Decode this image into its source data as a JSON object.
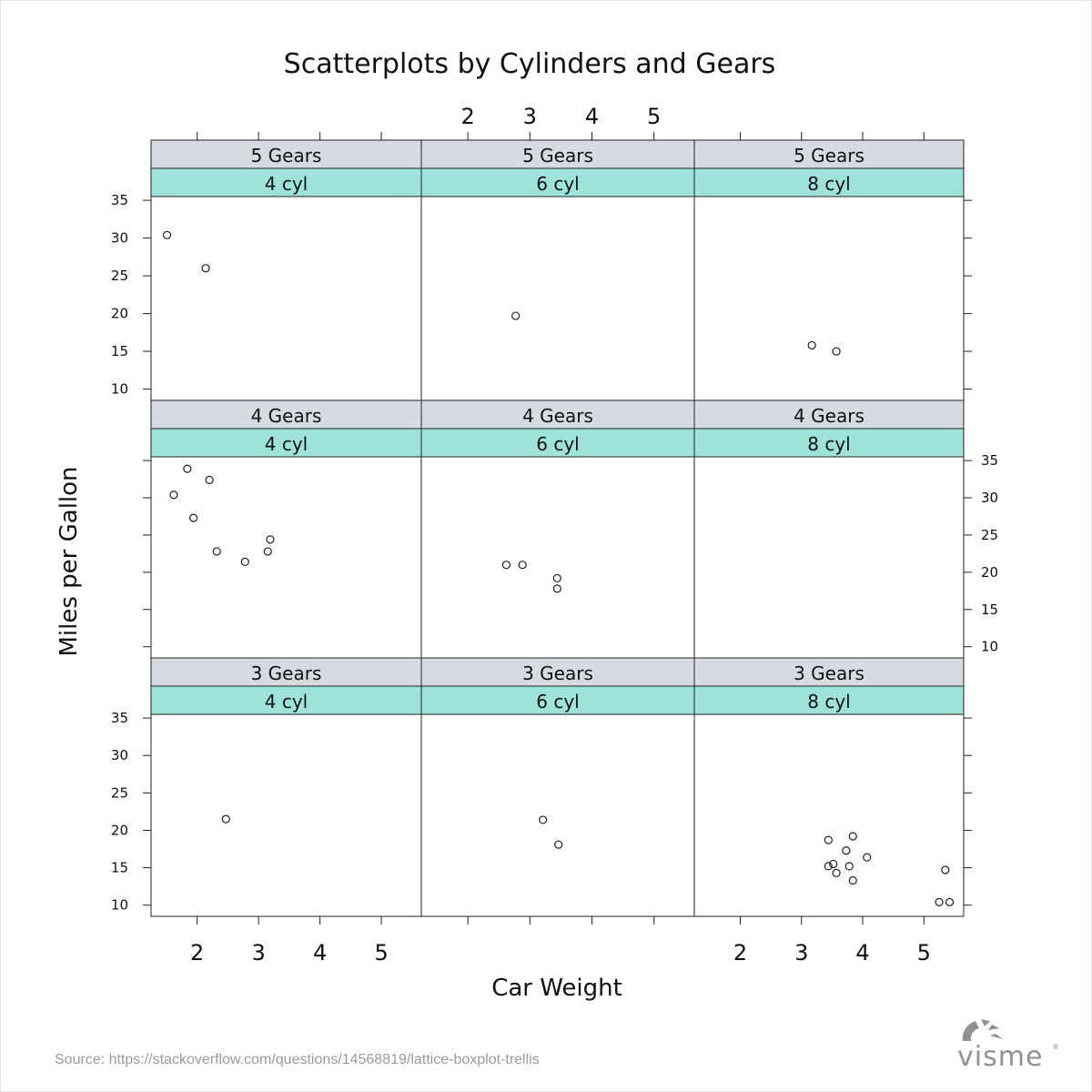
{
  "chart_data": {
    "type": "scatter",
    "title": "Scatterplots by Cylinders and Gears",
    "xlabel": "Car Weight",
    "ylabel": "Miles per Gallon",
    "xlim": [
      1.25,
      5.65
    ],
    "ylim": [
      8.5,
      35.5
    ],
    "x_ticks": [
      2,
      3,
      4,
      5
    ],
    "y_ticks": [
      10,
      15,
      20,
      25,
      30,
      35
    ],
    "strip_colors": {
      "gears": "#d7dae1",
      "cyl": "#9de3da"
    },
    "rows": [
      "5 Gears",
      "4 Gears",
      "3 Gears"
    ],
    "cols": [
      "4 cyl",
      "6 cyl",
      "8 cyl"
    ],
    "panels": [
      {
        "gears": "5 Gears",
        "cyl": "4 cyl",
        "points": [
          [
            1.51,
            30.4
          ],
          [
            2.14,
            26.0
          ]
        ]
      },
      {
        "gears": "5 Gears",
        "cyl": "6 cyl",
        "points": [
          [
            2.77,
            19.7
          ]
        ]
      },
      {
        "gears": "5 Gears",
        "cyl": "8 cyl",
        "points": [
          [
            3.17,
            15.8
          ],
          [
            3.57,
            15.0
          ]
        ]
      },
      {
        "gears": "4 Gears",
        "cyl": "4 cyl",
        "points": [
          [
            1.84,
            33.9
          ],
          [
            1.62,
            30.4
          ],
          [
            2.2,
            32.4
          ],
          [
            1.94,
            27.3
          ],
          [
            2.32,
            22.8
          ],
          [
            2.78,
            21.4
          ],
          [
            3.15,
            22.8
          ],
          [
            3.19,
            24.4
          ]
        ]
      },
      {
        "gears": "4 Gears",
        "cyl": "6 cyl",
        "points": [
          [
            2.62,
            21.0
          ],
          [
            2.88,
            21.0
          ],
          [
            3.44,
            19.2
          ],
          [
            3.44,
            17.8
          ]
        ]
      },
      {
        "gears": "4 Gears",
        "cyl": "8 cyl",
        "points": []
      },
      {
        "gears": "3 Gears",
        "cyl": "4 cyl",
        "points": [
          [
            2.47,
            21.5
          ]
        ]
      },
      {
        "gears": "3 Gears",
        "cyl": "6 cyl",
        "points": [
          [
            3.21,
            21.4
          ],
          [
            3.46,
            18.1
          ]
        ]
      },
      {
        "gears": "3 Gears",
        "cyl": "8 cyl",
        "points": [
          [
            3.44,
            18.7
          ],
          [
            3.84,
            19.2
          ],
          [
            3.73,
            17.3
          ],
          [
            3.78,
            15.2
          ],
          [
            3.52,
            15.5
          ],
          [
            3.57,
            14.3
          ],
          [
            3.84,
            13.3
          ],
          [
            4.07,
            16.4
          ],
          [
            3.44,
            15.2
          ],
          [
            5.25,
            10.4
          ],
          [
            5.42,
            10.4
          ],
          [
            5.35,
            14.7
          ]
        ]
      }
    ]
  },
  "footer": {
    "source": "Source: https://stackoverflow.com/questions/14568819/lattice-boxplot-trellis",
    "brand": "visme",
    "brand_mark": "®"
  }
}
